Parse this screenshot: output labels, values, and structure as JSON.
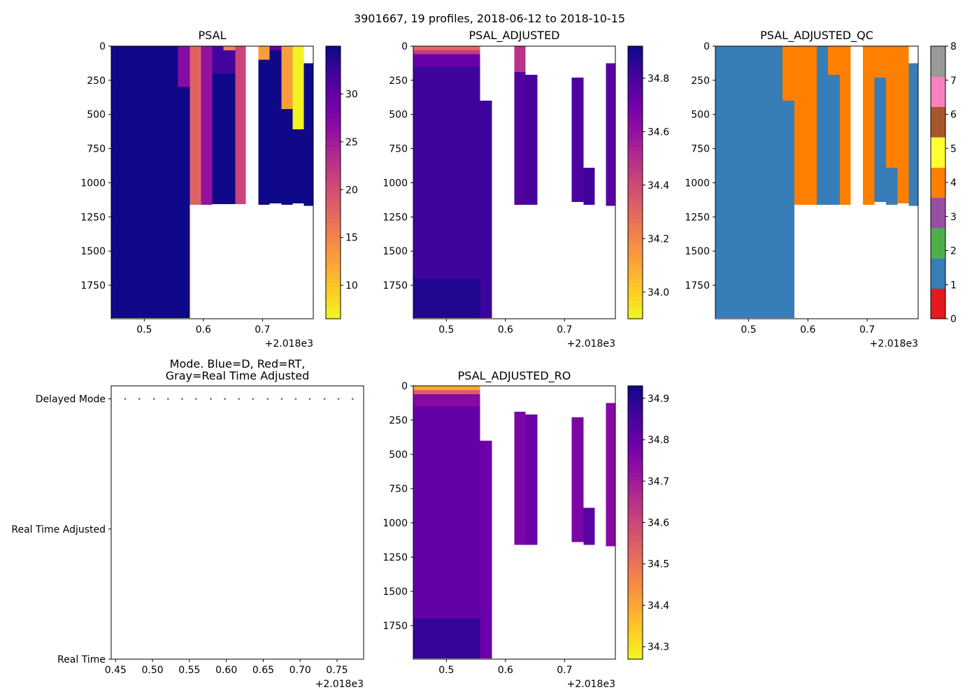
{
  "suptitle": "3901667, 19 profiles, 2018-06-12 to 2018-10-15",
  "x_offset_label": "+2.018e3",
  "chart_data": [
    {
      "id": "psal",
      "type": "heatmap",
      "title": "PSAL",
      "xlim": [
        0.444,
        0.786
      ],
      "ylim_inverted": [
        1995,
        0
      ],
      "xticks": [
        0.5,
        0.6,
        0.7
      ],
      "xtick_labels": [
        "0.5",
        "0.6",
        "0.7"
      ],
      "x_offset": "+2.018e3",
      "yticks": [
        0,
        250,
        500,
        750,
        1000,
        1250,
        1500,
        1750
      ],
      "ytick_labels": [
        "0",
        "250",
        "500",
        "750",
        "1000",
        "1250",
        "1500",
        "1750"
      ],
      "colormap": "plasma_r",
      "clim": [
        6.5,
        35
      ],
      "colorbar_ticks": [
        10,
        15,
        20,
        25,
        30
      ],
      "colorbar_tick_labels": [
        "10",
        "15",
        "20",
        "25",
        "30"
      ],
      "columns": [
        {
          "x0": 0.444,
          "x1": 0.557,
          "segments": [
            {
              "y0": 0,
              "y1": 1990,
              "v": 34.9
            }
          ]
        },
        {
          "x0": 0.557,
          "x1": 0.577,
          "segments": [
            {
              "y0": 0,
              "y1": 300,
              "v": 27
            },
            {
              "y0": 300,
              "y1": 1990,
              "v": 34.9
            }
          ]
        },
        {
          "x0": 0.577,
          "x1": 0.596,
          "segments": [
            {
              "y0": 0,
              "y1": 1160,
              "v": 18
            }
          ]
        },
        {
          "x0": 0.596,
          "x1": 0.615,
          "segments": [
            {
              "y0": 0,
              "y1": 1160,
              "v": 26
            }
          ]
        },
        {
          "x0": 0.615,
          "x1": 0.654,
          "segments": [
            {
              "y0": 0,
              "y1": 200,
              "v": 32
            },
            {
              "y0": 200,
              "y1": 1155,
              "v": 34.9
            }
          ]
        },
        {
          "x0": 0.634,
          "x1": 0.654,
          "segments": [
            {
              "y0": 0,
              "y1": 30,
              "v": 15
            }
          ]
        },
        {
          "x0": 0.654,
          "x1": 0.672,
          "segments": [
            {
              "y0": 0,
              "y1": 1155,
              "v": 21
            }
          ]
        },
        {
          "x0": 0.693,
          "x1": 0.712,
          "segments": [
            {
              "y0": 0,
              "y1": 100,
              "v": 13
            },
            {
              "y0": 100,
              "y1": 1160,
              "v": 34.9
            }
          ]
        },
        {
          "x0": 0.712,
          "x1": 0.732,
          "segments": [
            {
              "y0": 0,
              "y1": 30,
              "v": 30
            },
            {
              "y0": 30,
              "y1": 1150,
              "v": 34.9
            }
          ]
        },
        {
          "x0": 0.732,
          "x1": 0.751,
          "segments": [
            {
              "y0": 0,
              "y1": 460,
              "v": 13
            },
            {
              "y0": 460,
              "y1": 1160,
              "v": 34.9
            }
          ]
        },
        {
          "x0": 0.751,
          "x1": 0.77,
          "segments": [
            {
              "y0": 0,
              "y1": 610,
              "v": 7
            },
            {
              "y0": 610,
              "y1": 1150,
              "v": 34.9
            }
          ]
        },
        {
          "x0": 0.77,
          "x1": 0.786,
          "segments": [
            {
              "y0": 125,
              "y1": 1170,
              "v": 34.9
            }
          ]
        }
      ]
    },
    {
      "id": "psal_adjusted",
      "type": "heatmap",
      "title": "PSAL_ADJUSTED",
      "xlim": [
        0.444,
        0.786
      ],
      "ylim_inverted": [
        1995,
        0
      ],
      "xticks": [
        0.5,
        0.6,
        0.7
      ],
      "xtick_labels": [
        "0.5",
        "0.6",
        "0.7"
      ],
      "x_offset": "+2.018e3",
      "yticks": [
        0,
        250,
        500,
        750,
        1000,
        1250,
        1500,
        1750
      ],
      "ytick_labels": [
        "0",
        "250",
        "500",
        "750",
        "1000",
        "1250",
        "1500",
        "1750"
      ],
      "colormap": "plasma_r",
      "clim": [
        33.9,
        34.92
      ],
      "colorbar_ticks": [
        34.0,
        34.2,
        34.4,
        34.6,
        34.8
      ],
      "colorbar_tick_labels": [
        "34.0",
        "34.2",
        "34.4",
        "34.6",
        "34.8"
      ],
      "columns": [
        {
          "x0": 0.444,
          "x1": 0.557,
          "segments": [
            {
              "y0": 0,
              "y1": 30,
              "v": 34.3
            },
            {
              "y0": 30,
              "y1": 60,
              "v": 34.45
            },
            {
              "y0": 60,
              "y1": 150,
              "v": 34.72
            },
            {
              "y0": 150,
              "y1": 1700,
              "v": 34.82
            },
            {
              "y0": 1700,
              "y1": 1990,
              "v": 34.88
            }
          ]
        },
        {
          "x0": 0.557,
          "x1": 0.577,
          "segments": [
            {
              "y0": 400,
              "y1": 1990,
              "v": 34.83
            }
          ]
        },
        {
          "x0": 0.615,
          "x1": 0.634,
          "segments": [
            {
              "y0": 0,
              "y1": 190,
              "v": 34.48
            },
            {
              "y0": 190,
              "y1": 1160,
              "v": 34.78
            }
          ]
        },
        {
          "x0": 0.634,
          "x1": 0.654,
          "segments": [
            {
              "y0": 210,
              "y1": 1160,
              "v": 34.8
            }
          ]
        },
        {
          "x0": 0.712,
          "x1": 0.732,
          "segments": [
            {
              "y0": 230,
              "y1": 1140,
              "v": 34.79
            }
          ]
        },
        {
          "x0": 0.732,
          "x1": 0.751,
          "segments": [
            {
              "y0": 890,
              "y1": 1160,
              "v": 34.82
            }
          ]
        },
        {
          "x0": 0.77,
          "x1": 0.786,
          "segments": [
            {
              "y0": 125,
              "y1": 1170,
              "v": 34.76
            }
          ]
        }
      ]
    },
    {
      "id": "psal_adjusted_qc",
      "type": "heatmap",
      "title": "PSAL_ADJUSTED_QC",
      "xlim": [
        0.444,
        0.786
      ],
      "ylim_inverted": [
        1995,
        0
      ],
      "xticks": [
        0.5,
        0.6,
        0.7
      ],
      "xtick_labels": [
        "0.5",
        "0.6",
        "0.7"
      ],
      "x_offset": "+2.018e3",
      "yticks": [
        0,
        250,
        500,
        750,
        1000,
        1250,
        1500,
        1750
      ],
      "ytick_labels": [
        "0",
        "250",
        "500",
        "750",
        "1000",
        "1250",
        "1500",
        "1750"
      ],
      "colormap": "qc_flags",
      "clim": [
        0,
        8
      ],
      "colorbar_ticks": [
        0,
        1,
        2,
        3,
        4,
        5,
        6,
        7,
        8
      ],
      "colorbar_tick_labels": [
        "0",
        "1",
        "2",
        "3",
        "4",
        "5",
        "6",
        "7",
        "8"
      ],
      "categories_colors": [
        "#e41a1c",
        "#377eb8",
        "#4daf4a",
        "#984ea3",
        "#ff7f00",
        "#ffff33",
        "#a65628",
        "#f781bf",
        "#999999"
      ],
      "columns": [
        {
          "x0": 0.444,
          "x1": 0.557,
          "segments": [
            {
              "y0": 0,
              "y1": 1990,
              "v": 1
            }
          ]
        },
        {
          "x0": 0.557,
          "x1": 0.577,
          "segments": [
            {
              "y0": 0,
              "y1": 400,
              "v": 4
            },
            {
              "y0": 400,
              "y1": 1990,
              "v": 1
            }
          ]
        },
        {
          "x0": 0.577,
          "x1": 0.596,
          "segments": [
            {
              "y0": 0,
              "y1": 1160,
              "v": 4
            }
          ]
        },
        {
          "x0": 0.596,
          "x1": 0.615,
          "segments": [
            {
              "y0": 0,
              "y1": 1160,
              "v": 4
            }
          ]
        },
        {
          "x0": 0.615,
          "x1": 0.634,
          "segments": [
            {
              "y0": 0,
              "y1": 1160,
              "v": 1
            }
          ]
        },
        {
          "x0": 0.634,
          "x1": 0.654,
          "segments": [
            {
              "y0": 0,
              "y1": 210,
              "v": 4
            },
            {
              "y0": 210,
              "y1": 1160,
              "v": 1
            }
          ]
        },
        {
          "x0": 0.654,
          "x1": 0.672,
          "segments": [
            {
              "y0": 0,
              "y1": 1160,
              "v": 4
            }
          ]
        },
        {
          "x0": 0.693,
          "x1": 0.712,
          "segments": [
            {
              "y0": 0,
              "y1": 1160,
              "v": 4
            }
          ]
        },
        {
          "x0": 0.712,
          "x1": 0.732,
          "segments": [
            {
              "y0": 0,
              "y1": 230,
              "v": 4
            },
            {
              "y0": 230,
              "y1": 1140,
              "v": 1
            }
          ]
        },
        {
          "x0": 0.732,
          "x1": 0.751,
          "segments": [
            {
              "y0": 0,
              "y1": 890,
              "v": 4
            },
            {
              "y0": 890,
              "y1": 1160,
              "v": 1
            }
          ]
        },
        {
          "x0": 0.751,
          "x1": 0.77,
          "segments": [
            {
              "y0": 0,
              "y1": 1150,
              "v": 4
            }
          ]
        },
        {
          "x0": 0.77,
          "x1": 0.786,
          "segments": [
            {
              "y0": 125,
              "y1": 1170,
              "v": 1
            }
          ]
        }
      ]
    },
    {
      "id": "mode",
      "type": "scatter",
      "title_line1": "Mode. Blue=D, Red=RT,",
      "title_line2": "Gray=Real Time Adjusted",
      "xlim": [
        0.444,
        0.786
      ],
      "xticks": [
        0.45,
        0.5,
        0.55,
        0.6,
        0.65,
        0.7,
        0.75
      ],
      "xtick_labels": [
        "0.45",
        "0.50",
        "0.55",
        "0.60",
        "0.65",
        "0.70",
        "0.75"
      ],
      "x_offset": "+2.018e3",
      "ylim": [
        0,
        2.1
      ],
      "yticks": [
        2,
        1,
        0
      ],
      "ytick_labels": [
        "Delayed Mode",
        "Real Time Adjusted",
        "Real Time"
      ],
      "series": [
        {
          "name": "Delayed Mode",
          "color": "#1f77b4",
          "y": 2,
          "x": [
            0.463,
            0.482,
            0.502,
            0.521,
            0.54,
            0.559,
            0.579,
            0.598,
            0.617,
            0.636,
            0.656,
            0.675,
            0.694,
            0.713,
            0.733,
            0.752,
            0.771
          ]
        }
      ]
    },
    {
      "id": "psal_adjusted_ro",
      "type": "heatmap",
      "title": "PSAL_ADJUSTED_RO",
      "xlim": [
        0.444,
        0.786
      ],
      "ylim_inverted": [
        1995,
        0
      ],
      "xticks": [
        0.5,
        0.6,
        0.7
      ],
      "xtick_labels": [
        "0.5",
        "0.6",
        "0.7"
      ],
      "x_offset": "+2.018e3",
      "yticks": [
        0,
        250,
        500,
        750,
        1000,
        1250,
        1500,
        1750
      ],
      "ytick_labels": [
        "0",
        "250",
        "500",
        "750",
        "1000",
        "1250",
        "1500",
        "1750"
      ],
      "colormap": "plasma_r",
      "clim": [
        34.27,
        34.93
      ],
      "colorbar_ticks": [
        34.3,
        34.4,
        34.5,
        34.6,
        34.7,
        34.8,
        34.9
      ],
      "colorbar_tick_labels": [
        "34.3",
        "34.4",
        "34.5",
        "34.6",
        "34.7",
        "34.8",
        "34.9"
      ],
      "columns": [
        {
          "x0": 0.444,
          "x1": 0.557,
          "segments": [
            {
              "y0": 0,
              "y1": 30,
              "v": 34.4
            },
            {
              "y0": 30,
              "y1": 60,
              "v": 34.55
            },
            {
              "y0": 60,
              "y1": 150,
              "v": 34.75
            },
            {
              "y0": 150,
              "y1": 1700,
              "v": 34.81
            },
            {
              "y0": 1700,
              "y1": 1990,
              "v": 34.88
            }
          ]
        },
        {
          "x0": 0.557,
          "x1": 0.577,
          "segments": [
            {
              "y0": 400,
              "y1": 1990,
              "v": 34.8
            }
          ]
        },
        {
          "x0": 0.615,
          "x1": 0.634,
          "segments": [
            {
              "y0": 190,
              "y1": 1160,
              "v": 34.77
            }
          ]
        },
        {
          "x0": 0.634,
          "x1": 0.654,
          "segments": [
            {
              "y0": 210,
              "y1": 1160,
              "v": 34.8
            }
          ]
        },
        {
          "x0": 0.712,
          "x1": 0.732,
          "segments": [
            {
              "y0": 230,
              "y1": 1140,
              "v": 34.77
            }
          ]
        },
        {
          "x0": 0.732,
          "x1": 0.751,
          "segments": [
            {
              "y0": 890,
              "y1": 1160,
              "v": 34.82
            }
          ]
        },
        {
          "x0": 0.77,
          "x1": 0.786,
          "segments": [
            {
              "y0": 125,
              "y1": 1170,
              "v": 34.75
            }
          ]
        }
      ]
    }
  ]
}
